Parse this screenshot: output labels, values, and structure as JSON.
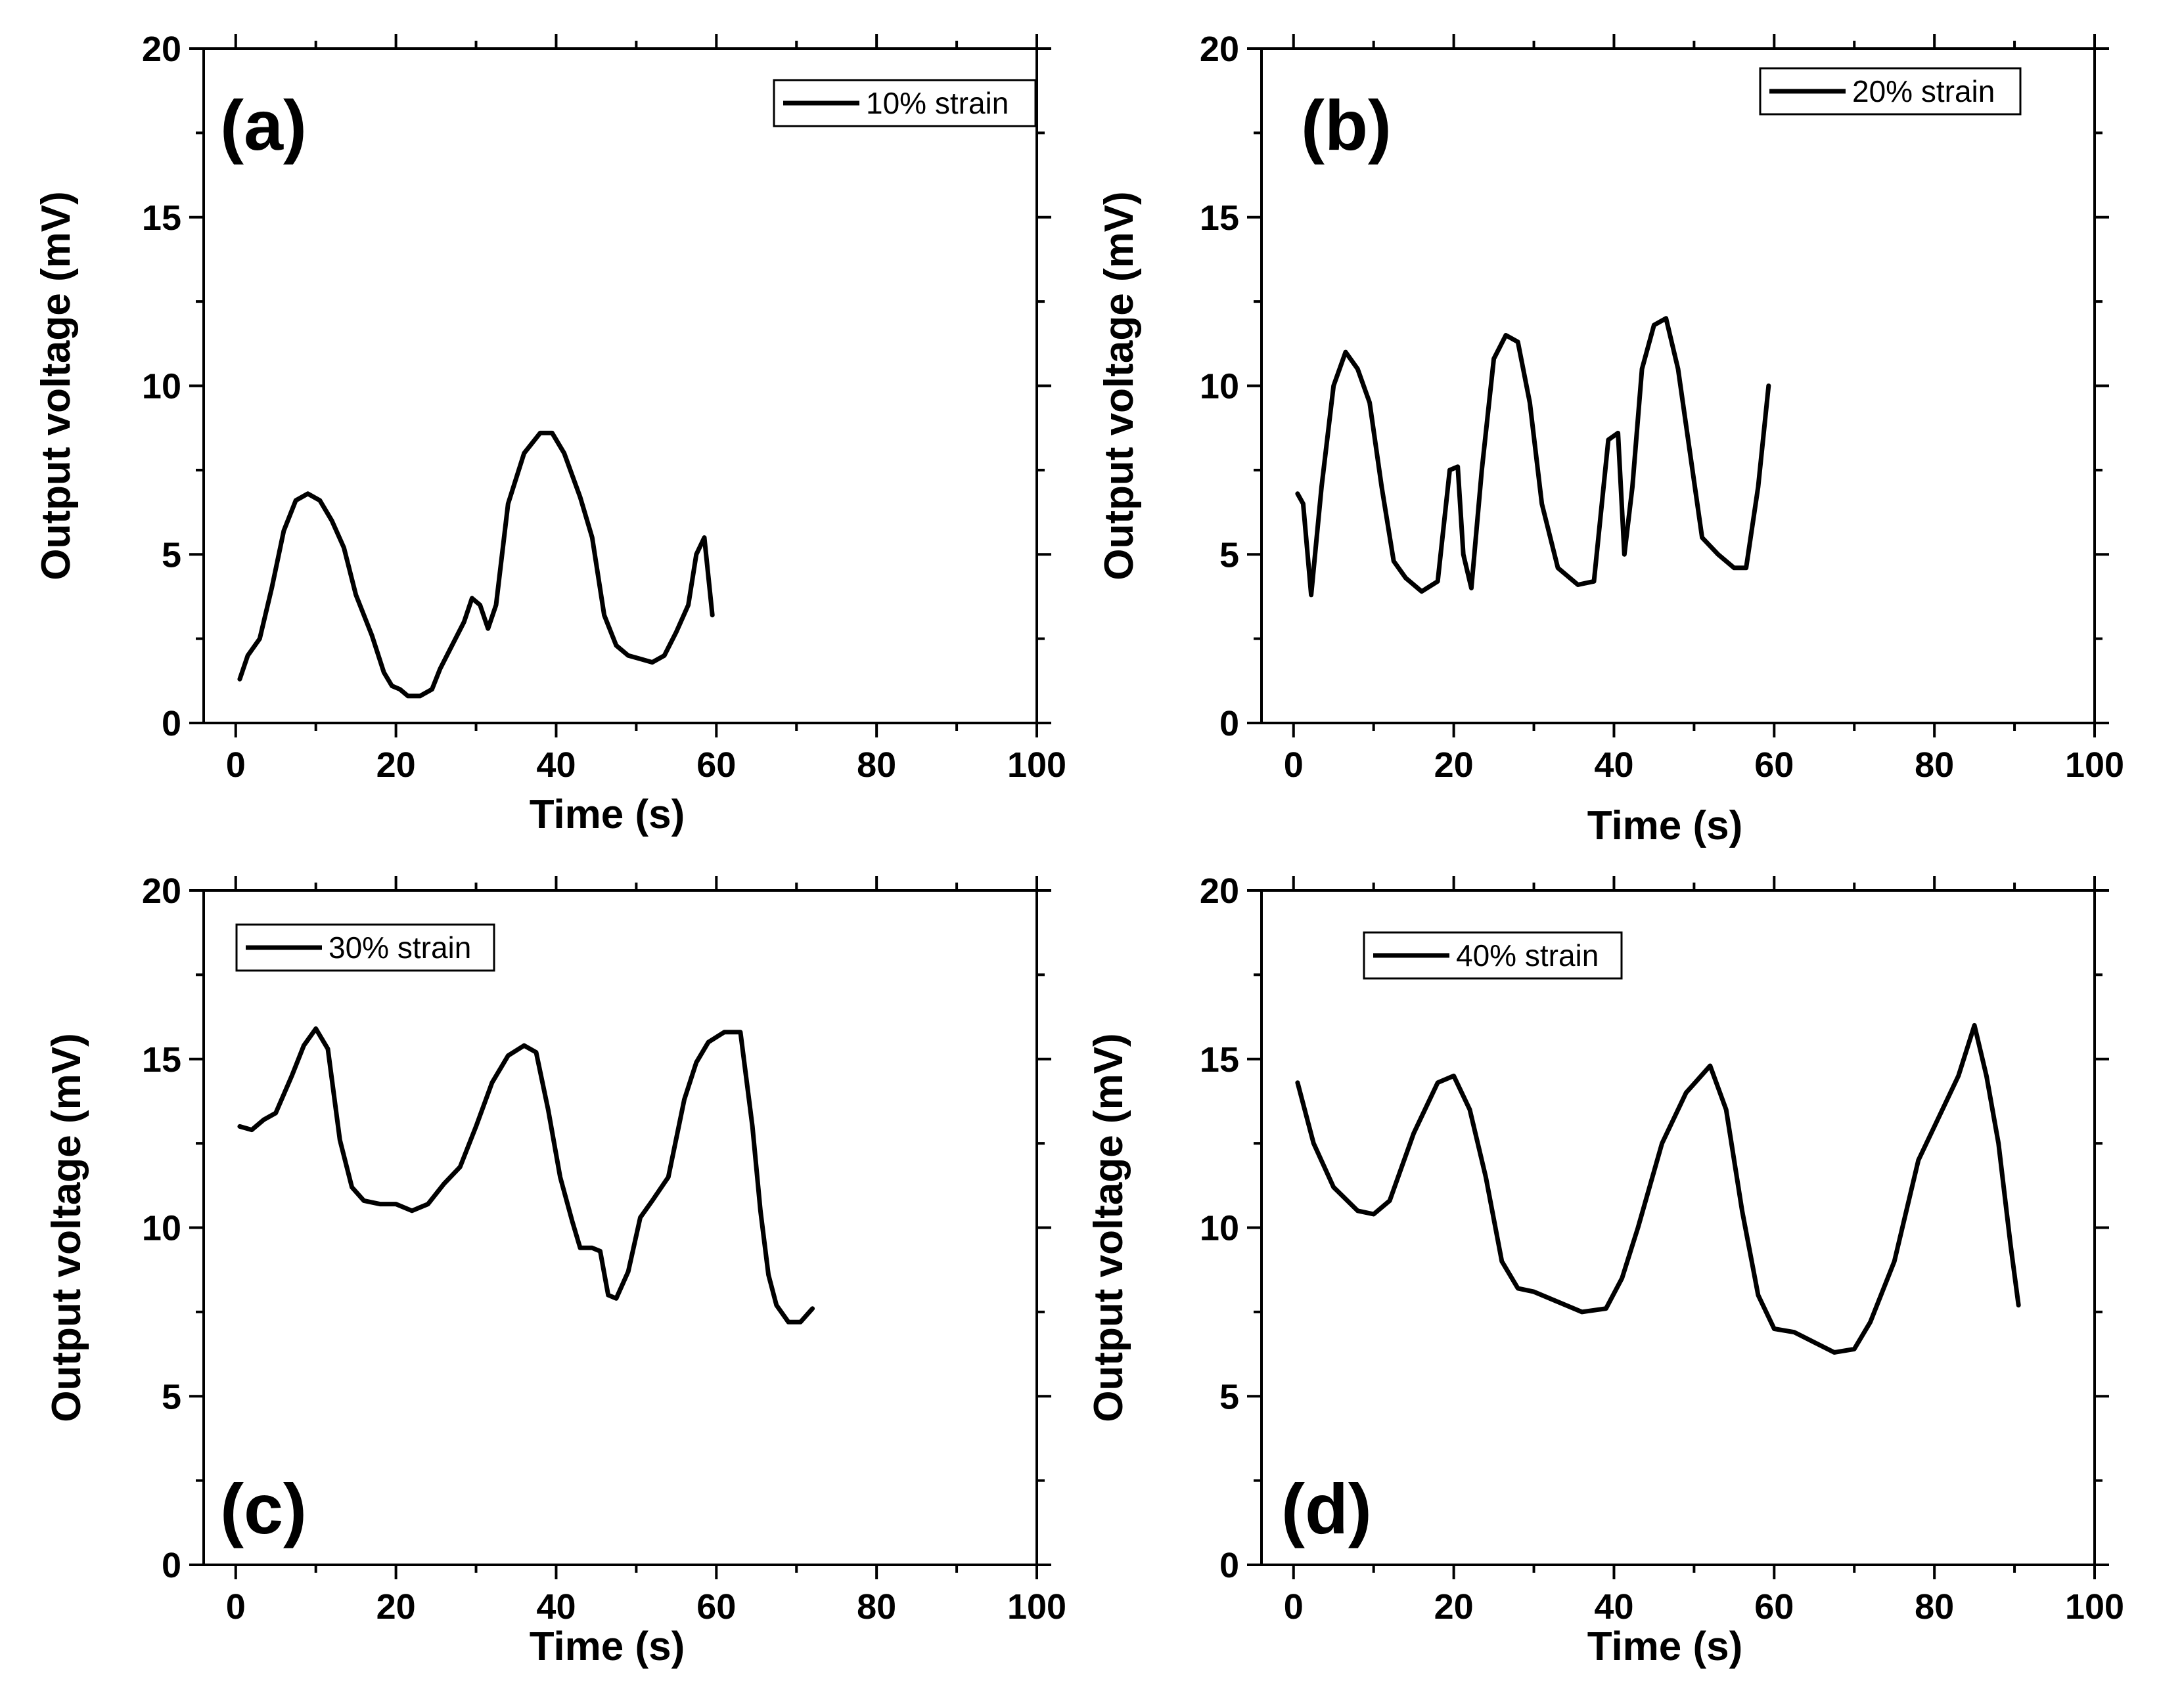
{
  "figure": {
    "background": "#ffffff",
    "line_color": "#000000"
  },
  "chart_data": [
    {
      "type": "line",
      "panel_label": "(a)",
      "xlabel": "Time (s)",
      "ylabel": "Output voltage (mV)",
      "xlim": [
        -4,
        100
      ],
      "ylim": [
        0,
        20
      ],
      "xticks": [
        "0",
        "20",
        "40",
        "60",
        "80",
        "100"
      ],
      "yticks": [
        "0",
        "5",
        "10",
        "15",
        "20"
      ],
      "legend": {
        "label": "10% strain",
        "position": "top-right"
      },
      "series": [
        {
          "name": "10% strain",
          "x": [
            0.5,
            1.5,
            3,
            4.5,
            6,
            7.5,
            9,
            10.5,
            12,
            13.5,
            15,
            17,
            18.5,
            19.5,
            20.5,
            21.5,
            23,
            24.5,
            25.5,
            27,
            28.5,
            29.5,
            30.5,
            31.5,
            32.5,
            34,
            36,
            38,
            39.5,
            41,
            43,
            44.5,
            46,
            47.5,
            49,
            50.5,
            52,
            53.5,
            55,
            56.5,
            57.5,
            58.5,
            59.5
          ],
          "y": [
            1.3,
            2.0,
            2.5,
            4.0,
            5.7,
            6.6,
            6.8,
            6.6,
            6.0,
            5.2,
            3.8,
            2.6,
            1.5,
            1.1,
            1.0,
            0.8,
            0.8,
            1.0,
            1.6,
            2.3,
            3.0,
            3.7,
            3.5,
            2.8,
            3.5,
            6.5,
            8.0,
            8.6,
            8.6,
            8.0,
            6.7,
            5.5,
            3.2,
            2.3,
            2.0,
            1.9,
            1.8,
            2.0,
            2.7,
            3.5,
            5.0,
            5.5,
            3.2
          ]
        }
      ]
    },
    {
      "type": "line",
      "panel_label": "(b)",
      "xlabel": "Time (s)",
      "ylabel": "Output voltage (mV)",
      "xlim": [
        -4,
        100
      ],
      "ylim": [
        0,
        20
      ],
      "xticks": [
        "0",
        "20",
        "40",
        "60",
        "80",
        "100"
      ],
      "yticks": [
        "0",
        "5",
        "10",
        "15",
        "20"
      ],
      "legend": {
        "label": "20% strain",
        "position": "top-right"
      },
      "series": [
        {
          "name": "20% strain",
          "x": [
            0.5,
            1.2,
            2.2,
            3.5,
            5,
            6.5,
            8,
            9.5,
            11,
            12.5,
            14,
            16,
            18,
            19.5,
            20.5,
            21.2,
            22.2,
            23.5,
            25,
            26.5,
            28,
            29.5,
            31,
            33,
            35.5,
            37.5,
            39.3,
            40.5,
            41.3,
            42.3,
            43.5,
            45,
            46.5,
            48,
            49.5,
            51,
            53,
            55,
            56.5,
            58,
            59.3
          ],
          "y": [
            6.8,
            6.5,
            3.8,
            7.0,
            10.0,
            11.0,
            10.5,
            9.5,
            7.0,
            4.8,
            4.3,
            3.9,
            4.2,
            7.5,
            7.6,
            5.0,
            4.0,
            7.5,
            10.8,
            11.5,
            11.3,
            9.5,
            6.5,
            4.6,
            4.1,
            4.2,
            8.4,
            8.6,
            5.0,
            7.0,
            10.5,
            11.8,
            12.0,
            10.5,
            8.0,
            5.5,
            5.0,
            4.6,
            4.6,
            7.0,
            10.0
          ]
        }
      ]
    },
    {
      "type": "line",
      "panel_label": "(c)",
      "xlabel": "Time (s)",
      "ylabel": "Output voltage (mV)",
      "xlim": [
        -4,
        100
      ],
      "ylim": [
        0,
        20
      ],
      "xticks": [
        "0",
        "20",
        "40",
        "60",
        "80",
        "100"
      ],
      "yticks": [
        "0",
        "5",
        "10",
        "15",
        "20"
      ],
      "legend": {
        "label": "30% strain",
        "position": "top-left"
      },
      "series": [
        {
          "name": "30% strain",
          "x": [
            0.5,
            2,
            3.5,
            5,
            7,
            8.5,
            10,
            11.5,
            13,
            14.5,
            16,
            18,
            20,
            22,
            24,
            26,
            28,
            30,
            32,
            34,
            36,
            37.5,
            39,
            40.5,
            42,
            43,
            44.5,
            45.5,
            46.5,
            47.5,
            49,
            50.5,
            52,
            54,
            56,
            57.5,
            59,
            61,
            63,
            64.5,
            65.5,
            66.5,
            67.5,
            69,
            70.5,
            72
          ],
          "y": [
            13.0,
            12.9,
            13.2,
            13.4,
            14.5,
            15.4,
            15.9,
            15.3,
            12.6,
            11.2,
            10.8,
            10.7,
            10.7,
            10.5,
            10.7,
            11.3,
            11.8,
            13.0,
            14.3,
            15.1,
            15.4,
            15.2,
            13.5,
            11.5,
            10.2,
            9.4,
            9.4,
            9.3,
            8.0,
            7.9,
            8.7,
            10.3,
            10.8,
            11.5,
            13.8,
            14.9,
            15.5,
            15.8,
            15.8,
            13.0,
            10.5,
            8.6,
            7.7,
            7.2,
            7.2,
            7.6
          ]
        }
      ]
    },
    {
      "type": "line",
      "panel_label": "(d)",
      "xlabel": "Time (s)",
      "ylabel": "Output voltage (mV)",
      "xlim": [
        -4,
        100
      ],
      "ylim": [
        0,
        20
      ],
      "xticks": [
        "0",
        "20",
        "40",
        "60",
        "80",
        "100"
      ],
      "yticks": [
        "0",
        "5",
        "10",
        "15",
        "20"
      ],
      "legend": {
        "label": "40% strain",
        "position": "top-left"
      },
      "series": [
        {
          "name": "40% strain",
          "x": [
            0.5,
            2.5,
            5,
            8,
            10,
            12,
            15,
            18,
            20,
            22,
            24,
            26,
            28,
            30,
            33,
            36,
            39,
            41,
            43,
            46,
            49,
            52,
            54,
            56,
            58,
            60,
            62.5,
            65,
            67.5,
            70,
            72,
            75,
            78,
            80,
            83,
            85,
            86.5,
            88,
            89.5,
            90.5
          ],
          "y": [
            14.3,
            12.5,
            11.2,
            10.5,
            10.4,
            10.8,
            12.8,
            14.3,
            14.5,
            13.5,
            11.5,
            9.0,
            8.2,
            8.1,
            7.8,
            7.5,
            7.6,
            8.5,
            10.0,
            12.5,
            14.0,
            14.8,
            13.5,
            10.5,
            8.0,
            7.0,
            6.9,
            6.6,
            6.3,
            6.4,
            7.2,
            9.0,
            12.0,
            13.0,
            14.5,
            16.0,
            14.5,
            12.5,
            9.5,
            7.7
          ]
        }
      ]
    }
  ]
}
